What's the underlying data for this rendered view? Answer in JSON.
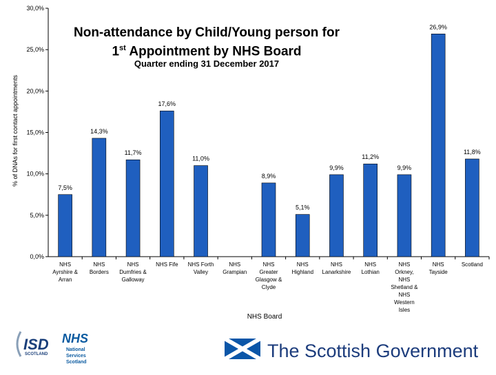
{
  "chart_data": {
    "type": "bar",
    "title": "Non-attendance by Child/Young person for 1st Appointment by NHS Board",
    "title_line1": "Non-attendance by Child/Young person for",
    "title_line2_pre": "1",
    "title_line2_sup": "st",
    "title_line2_post": " Appointment by NHS Board",
    "subtitle": "Quarter ending 31 December 2017",
    "xlabel": "NHS Board",
    "ylabel": "% of DNAs for first contact appointments",
    "ylim": [
      0,
      30
    ],
    "yticks": [
      "0,0%",
      "5,0%",
      "10,0%",
      "15,0%",
      "20,0%",
      "25,0%",
      "30,0%"
    ],
    "grid": false,
    "bar_color": "#1f5fbf",
    "categories": [
      [
        "NHS",
        "Ayrshire &",
        "Arran"
      ],
      [
        "NHS",
        "Borders"
      ],
      [
        "NHS",
        "Dumfries &",
        "Galloway"
      ],
      [
        "NHS Fife"
      ],
      [
        "NHS Forth",
        "Valley"
      ],
      [
        "NHS",
        "Grampian"
      ],
      [
        "NHS",
        "Greater",
        "Glasgow &",
        "Clyde"
      ],
      [
        "NHS",
        "Highland"
      ],
      [
        "NHS",
        "Lanarkshire"
      ],
      [
        "NHS",
        "Lothian"
      ],
      [
        "NHS",
        "Orkney,",
        "NHS",
        "Shetland &",
        "NHS",
        "Western",
        "Isles"
      ],
      [
        "NHS",
        "Tayside"
      ],
      [
        "Scotland"
      ]
    ],
    "values": [
      7.5,
      14.3,
      11.7,
      17.6,
      11.0,
      null,
      8.9,
      5.1,
      9.9,
      11.2,
      9.9,
      26.9,
      11.8
    ],
    "data_labels": [
      "7,5%",
      "14,3%",
      "11,7%",
      "17,6%",
      "11,0%",
      "",
      "8,9%",
      "5,1%",
      "9,9%",
      "11,2%",
      "9,9%",
      "26,9%",
      "11,8%"
    ]
  },
  "logos": {
    "isd_text": "ISD",
    "isd_sub": "SCOTLAND",
    "nhs_text": "NHS",
    "nhs_sub1": "National",
    "nhs_sub2": "Services",
    "nhs_sub3": "Scotland",
    "gov_text": "The Scottish Government",
    "gov_color": "#1c3c7c",
    "nhs_color": "#0a5aa0",
    "flag_color": "#0b56a8"
  }
}
